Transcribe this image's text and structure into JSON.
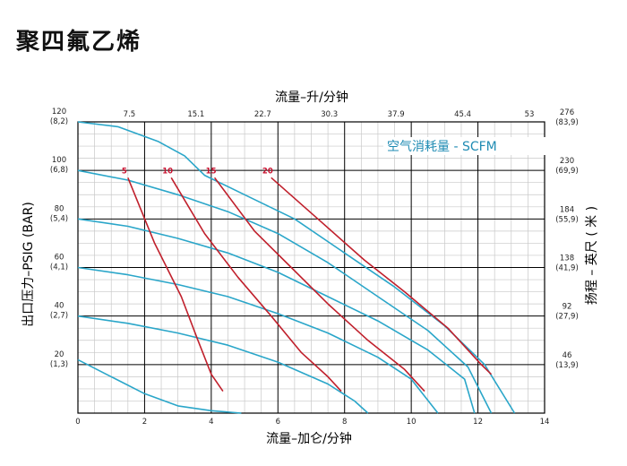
{
  "title": "聚四氟乙烯",
  "chart_data": {
    "type": "line",
    "x_top_label": "流量–升/分钟",
    "x_bottom_label": "流量–加仑/分钟",
    "y_left_label": "出口压力–PSIG (BAR)",
    "y_right_label": "扬程 – 英尺 ( 米 )",
    "legend": "空气消耗量 - SCFM",
    "xlim": [
      0,
      14
    ],
    "ylim": [
      0,
      120
    ],
    "x_bottom_ticks": [
      "0",
      "2",
      "4",
      "6",
      "8",
      "10",
      "12",
      "14"
    ],
    "x_top_ticks": [
      "7.5",
      "15.1",
      "22.7",
      "30.3",
      "37.9",
      "45.4",
      "53"
    ],
    "y_left_ticks": [
      {
        "psi": "20",
        "bar": "(1,3)"
      },
      {
        "psi": "40",
        "bar": "(2,7)"
      },
      {
        "psi": "60",
        "bar": "(4,1)"
      },
      {
        "psi": "80",
        "bar": "(5,4)"
      },
      {
        "psi": "100",
        "bar": "(6,8)"
      },
      {
        "psi": "120",
        "bar": "(8,2)"
      }
    ],
    "y_right_ticks": [
      {
        "ft": "46",
        "m": "(13,9)"
      },
      {
        "ft": "92",
        "m": "(27,9)"
      },
      {
        "ft": "138",
        "m": "(41,9)"
      },
      {
        "ft": "184",
        "m": "(55,9)"
      },
      {
        "ft": "230",
        "m": "(69,9)"
      },
      {
        "ft": "276",
        "m": "(83,9)"
      }
    ],
    "colors": {
      "pressure_curves": "#2aa6c9",
      "air_curves": "#c0202c",
      "grid": "#000000",
      "minor_grid": "#c8c8c8"
    },
    "pressure_series": [
      {
        "points": [
          [
            0,
            120
          ],
          [
            1.2,
            118
          ],
          [
            2.4,
            112
          ],
          [
            3.2,
            106
          ],
          [
            3.8,
            98
          ],
          [
            5,
            90
          ],
          [
            6.5,
            80
          ],
          [
            8,
            66
          ],
          [
            9.5,
            52
          ],
          [
            11,
            36
          ],
          [
            12.2,
            20
          ],
          [
            13.1,
            0
          ]
        ]
      },
      {
        "points": [
          [
            0,
            100
          ],
          [
            1.5,
            96
          ],
          [
            3,
            90
          ],
          [
            4.5,
            83
          ],
          [
            6,
            74
          ],
          [
            7.5,
            62
          ],
          [
            9,
            48
          ],
          [
            10.5,
            34
          ],
          [
            11.7,
            19
          ],
          [
            12.4,
            0
          ]
        ]
      },
      {
        "points": [
          [
            0,
            80
          ],
          [
            1.5,
            77
          ],
          [
            3,
            72
          ],
          [
            4.5,
            66
          ],
          [
            6,
            58
          ],
          [
            7.5,
            48
          ],
          [
            9,
            38
          ],
          [
            10.5,
            26
          ],
          [
            11.6,
            14
          ],
          [
            11.9,
            0
          ]
        ]
      },
      {
        "points": [
          [
            0,
            60
          ],
          [
            1.5,
            57
          ],
          [
            3,
            53
          ],
          [
            4.5,
            48
          ],
          [
            6,
            41
          ],
          [
            7.5,
            33
          ],
          [
            9,
            23
          ],
          [
            10,
            14
          ],
          [
            10.8,
            0
          ]
        ]
      },
      {
        "points": [
          [
            0,
            40
          ],
          [
            1.5,
            37
          ],
          [
            3,
            33
          ],
          [
            4.5,
            28
          ],
          [
            6,
            21
          ],
          [
            7.5,
            12
          ],
          [
            8.3,
            5
          ],
          [
            8.7,
            0
          ]
        ]
      },
      {
        "points": [
          [
            0,
            22
          ],
          [
            1,
            15
          ],
          [
            2,
            8
          ],
          [
            3,
            3
          ],
          [
            4,
            1
          ],
          [
            4.9,
            0
          ]
        ]
      }
    ],
    "air_series": [
      {
        "name": "5",
        "points": [
          [
            1.5,
            97
          ],
          [
            2.3,
            70
          ],
          [
            3.1,
            48
          ],
          [
            3.6,
            30
          ],
          [
            4.0,
            16
          ],
          [
            4.35,
            9
          ]
        ]
      },
      {
        "name": "10",
        "points": [
          [
            2.8,
            97
          ],
          [
            3.8,
            74
          ],
          [
            4.8,
            56
          ],
          [
            5.8,
            40
          ],
          [
            6.7,
            25
          ],
          [
            7.5,
            15
          ],
          [
            7.9,
            9
          ]
        ]
      },
      {
        "name": "15",
        "points": [
          [
            4.1,
            97
          ],
          [
            5.3,
            75
          ],
          [
            6.4,
            60
          ],
          [
            7.5,
            45
          ],
          [
            8.7,
            30
          ],
          [
            9.8,
            18
          ],
          [
            10.4,
            9
          ]
        ]
      },
      {
        "name": "20",
        "points": [
          [
            5.8,
            97
          ],
          [
            7.2,
            80
          ],
          [
            8.6,
            63
          ],
          [
            9.8,
            50
          ],
          [
            11.1,
            35
          ],
          [
            12.1,
            20
          ],
          [
            12.4,
            16
          ]
        ]
      }
    ]
  }
}
